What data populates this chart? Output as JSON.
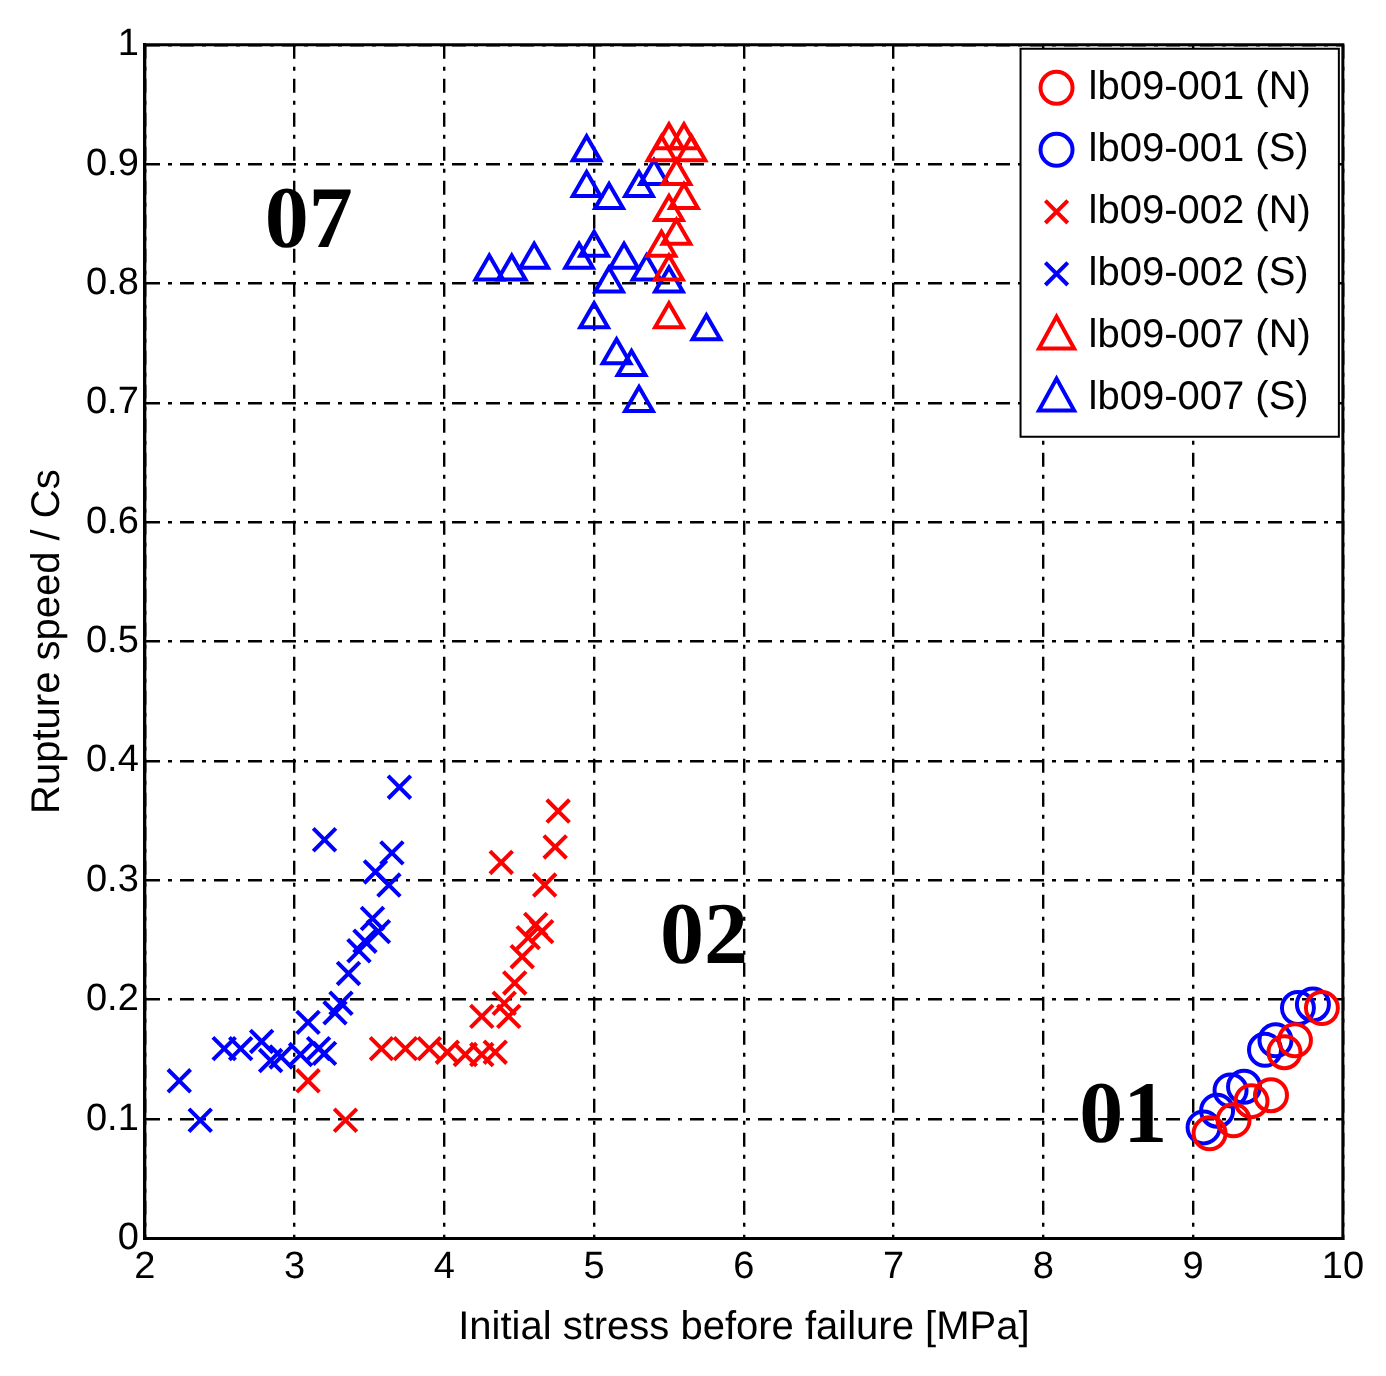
{
  "chart_data": {
    "type": "scatter",
    "xlabel": "Initial stress before failure [MPa]",
    "ylabel": "Rupture speed / Cs",
    "xlim": [
      2,
      10
    ],
    "xticks": [
      2,
      3,
      4,
      5,
      6,
      7,
      8,
      9,
      10
    ],
    "ylim": [
      0,
      1
    ],
    "yticks": [
      0,
      0.1,
      0.2,
      0.3,
      0.4,
      0.5,
      0.6,
      0.7,
      0.8,
      0.9,
      1
    ],
    "grid": true,
    "legend": "top right",
    "annotations": [
      "07",
      "02",
      "01"
    ],
    "series": [
      {
        "name": "lb09-001 (N)",
        "color": "#ff0000",
        "marker": "circle",
        "x": [
          9.11,
          9.27,
          9.39,
          9.52,
          9.61,
          9.68,
          9.86
        ],
        "values": [
          0.088,
          0.099,
          0.115,
          0.12,
          0.156,
          0.166,
          0.193
        ]
      },
      {
        "name": "lb09-001 (S)",
        "color": "#0000ff",
        "marker": "circle",
        "x": [
          9.07,
          9.16,
          9.25,
          9.34,
          9.48,
          9.55,
          9.7,
          9.8
        ],
        "values": [
          0.093,
          0.107,
          0.124,
          0.127,
          0.158,
          0.166,
          0.193,
          0.196
        ]
      },
      {
        "name": "lb09-002 (N)",
        "color": "#ff0000",
        "marker": "cross",
        "x": [
          3.09,
          3.34,
          3.58,
          3.74,
          3.9,
          4.02,
          4.14,
          4.25,
          4.34,
          4.25,
          4.4,
          4.43,
          4.47,
          4.52,
          4.56,
          4.61,
          4.65,
          4.38,
          4.67,
          4.74,
          4.76
        ],
        "values": [
          0.132,
          0.099,
          0.159,
          0.159,
          0.159,
          0.156,
          0.154,
          0.154,
          0.156,
          0.186,
          0.197,
          0.186,
          0.214,
          0.236,
          0.252,
          0.263,
          0.257,
          0.315,
          0.296,
          0.328,
          0.358
        ]
      },
      {
        "name": "lb09-002 (S)",
        "color": "#0000ff",
        "marker": "cross",
        "x": [
          2.23,
          2.37,
          2.53,
          2.64,
          2.78,
          2.84,
          2.91,
          3.04,
          3.09,
          3.16,
          3.2,
          3.27,
          3.31,
          3.2,
          3.36,
          3.43,
          3.47,
          3.52,
          3.56,
          3.54,
          3.63,
          3.65,
          3.7
        ],
        "values": [
          0.132,
          0.099,
          0.159,
          0.159,
          0.165,
          0.149,
          0.152,
          0.154,
          0.181,
          0.159,
          0.155,
          0.189,
          0.197,
          0.334,
          0.222,
          0.241,
          0.249,
          0.268,
          0.257,
          0.307,
          0.296,
          0.323,
          0.378
        ]
      },
      {
        "name": "lb09-007 (N)",
        "color": "#ff0000",
        "marker": "triangle",
        "x": [
          5.45,
          5.5,
          5.6,
          5.65,
          5.55,
          5.6,
          5.5,
          5.55,
          5.45,
          5.5,
          5.5
        ],
        "values": [
          0.91,
          0.92,
          0.92,
          0.91,
          0.89,
          0.87,
          0.86,
          0.84,
          0.83,
          0.81,
          0.77
        ]
      },
      {
        "name": "lb09-007 (S)",
        "color": "#0000ff",
        "marker": "triangle",
        "x": [
          4.95,
          4.95,
          5.1,
          5.3,
          5.4,
          4.6,
          4.45,
          4.3,
          4.9,
          5.0,
          5.2,
          5.35,
          5.5,
          5.0,
          5.15,
          5.25,
          5.3,
          5.75,
          5.1
        ],
        "values": [
          0.91,
          0.88,
          0.87,
          0.88,
          0.89,
          0.82,
          0.81,
          0.81,
          0.82,
          0.83,
          0.82,
          0.81,
          0.8,
          0.77,
          0.74,
          0.73,
          0.7,
          0.76,
          0.8
        ]
      }
    ]
  }
}
